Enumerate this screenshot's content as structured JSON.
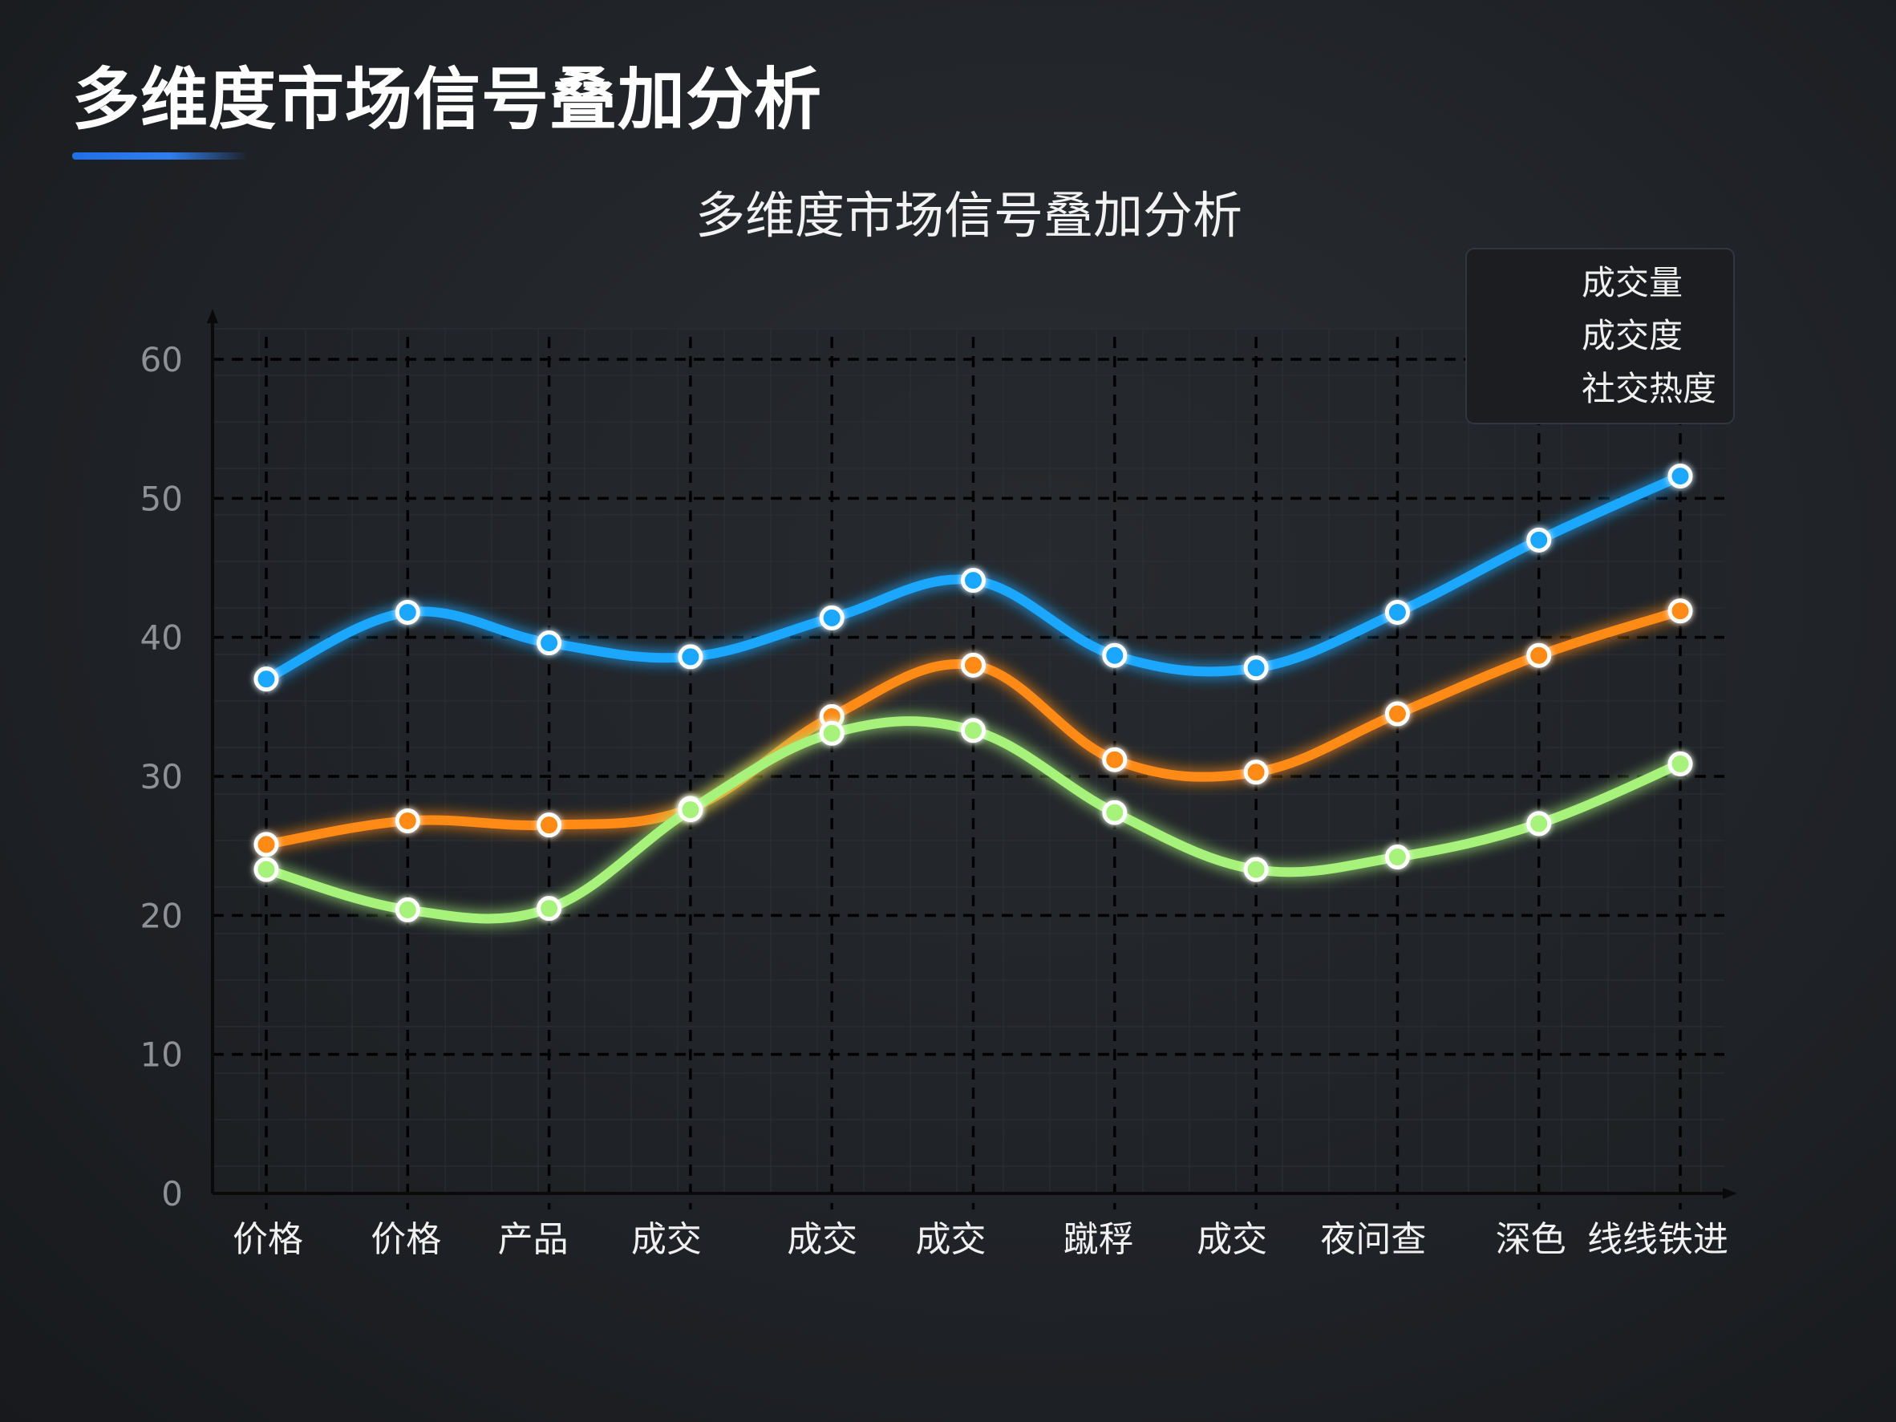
{
  "page": {
    "heading": "多维度市场信号叠加分析"
  },
  "colors": {
    "background": "#1e2023",
    "accent": "#1f6fe6",
    "grid": "#000000"
  },
  "chart_data": {
    "type": "line",
    "title": "多维度市场信号叠加分析",
    "xlabel": "",
    "ylabel": "",
    "categories": [
      "价格",
      "价格",
      "产品",
      "成交",
      "成交",
      "成交",
      "蹴稃",
      "成交",
      "夜问查",
      "深色",
      "线线铁进"
    ],
    "ylim": [
      0,
      60
    ],
    "yticks": [
      0,
      10,
      20,
      30,
      40,
      50,
      60
    ],
    "grid": true,
    "legend_position": "top-right",
    "series": [
      {
        "name": "成交量",
        "color": "#1aa7ff",
        "values": [
          37.0,
          41.8,
          39.6,
          38.6,
          41.4,
          44.1,
          38.7,
          37.8,
          41.8,
          47.0,
          51.6
        ]
      },
      {
        "name": "成交度",
        "color": "#ff8a12",
        "values": [
          25.1,
          26.8,
          26.5,
          27.7,
          34.3,
          38.0,
          31.2,
          30.3,
          34.5,
          38.7,
          41.9
        ]
      },
      {
        "name": "社交热度",
        "color": "#a6f27a",
        "values": [
          23.3,
          20.4,
          20.5,
          27.6,
          33.1,
          33.3,
          27.4,
          23.3,
          24.2,
          26.6,
          30.9
        ]
      }
    ]
  }
}
